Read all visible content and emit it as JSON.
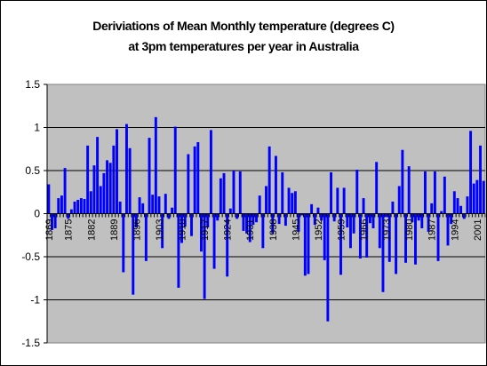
{
  "chart_data": {
    "type": "bar",
    "title": [
      "Deriviations of Mean Monthly temperature (degrees C)",
      "at 3pm temperatures per year in Australia"
    ],
    "xlabel": "",
    "ylabel": "",
    "ylim": [
      -1.5,
      1.5
    ],
    "yticks": [
      "1.5",
      "1",
      "0.5",
      "0",
      "-0.5",
      "-1",
      "-1.5"
    ],
    "ytick_values": [
      1.5,
      1,
      0.5,
      0,
      -0.5,
      -1,
      -1.5
    ],
    "grid": true,
    "legend": "none",
    "plot_background": "#c0c0c0",
    "bar_color": "#0000ff",
    "x_tick_labels": [
      "1869",
      "1875",
      "1882",
      "1889",
      "1896",
      "1903",
      "1910",
      "1917",
      "1924",
      "1931",
      "1938",
      "1945",
      "1952",
      "1959",
      "1966",
      "1973",
      "1980",
      "1987",
      "1994",
      "2001"
    ],
    "x_start": 1869,
    "values": [
      0.34,
      -0.19,
      -0.17,
      0.18,
      0.21,
      0.53,
      -0.06,
      0.05,
      0.14,
      0.16,
      0.18,
      0.17,
      0.79,
      0.26,
      0.56,
      0.89,
      0.32,
      0.47,
      0.62,
      0.59,
      0.79,
      0.98,
      0.14,
      -0.68,
      1.04,
      0.76,
      -0.94,
      -0.16,
      0.19,
      0.12,
      -0.55,
      0.88,
      0.22,
      1.12,
      0.2,
      -0.4,
      0.23,
      -0.06,
      0.07,
      1.01,
      -0.86,
      -0.34,
      -0.15,
      0.69,
      -0.26,
      0.78,
      0.83,
      -0.44,
      -0.99,
      -0.16,
      0.97,
      -0.64,
      -0.08,
      0.41,
      0.47,
      -0.73,
      0.06,
      0.5,
      -0.06,
      0.49,
      -0.2,
      -0.23,
      -0.33,
      -0.13,
      -0.1,
      0.21,
      -0.4,
      0.32,
      0.78,
      -0.23,
      0.67,
      -0.12,
      0.48,
      -0.14,
      0.3,
      0.24,
      0.26,
      -0.21,
      -0.02,
      -0.72,
      -0.7,
      0.11,
      -0.13,
      0.07,
      -0.08,
      -0.54,
      -1.25,
      0.48,
      -0.09,
      0.3,
      -0.71,
      0.3,
      -0.16,
      -0.4,
      -0.23,
      0.51,
      -0.52,
      0.18,
      -0.51,
      -0.11,
      -0.17,
      0.6,
      -0.4,
      -0.91,
      -0.04,
      -0.56,
      0.14,
      -0.7,
      0.32,
      0.74,
      -0.57,
      0.55,
      -0.1,
      -0.59,
      -0.08,
      -0.17,
      0.49,
      -0.21,
      0.12,
      0.49,
      -0.55,
      0.03,
      0.43,
      -0.37,
      -0.12,
      0.26,
      0.18,
      0.09,
      -0.06,
      0.2,
      0.96,
      0.35,
      0.39,
      0.79,
      0.38
    ]
  }
}
